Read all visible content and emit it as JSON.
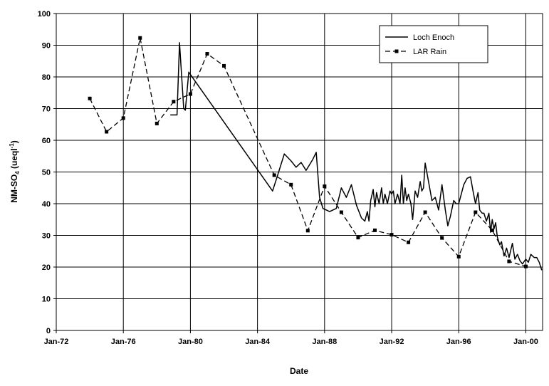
{
  "chart_data": {
    "type": "line",
    "title": "",
    "xlabel": "Date",
    "ylabel": {
      "main": "NM-SO",
      "sub": "4",
      "unit_pre": " (ueql",
      "sup": "-1",
      "unit_post": ")"
    },
    "xlim": [
      1972.0,
      2001.0
    ],
    "ylim": [
      0,
      100
    ],
    "x_ticks": [
      {
        "label": "Jan-72",
        "value": 1972.0
      },
      {
        "label": "Jan-76",
        "value": 1976.0
      },
      {
        "label": "Jan-80",
        "value": 1980.0
      },
      {
        "label": "Jan-84",
        "value": 1984.0
      },
      {
        "label": "Jan-88",
        "value": 1988.0
      },
      {
        "label": "Jan-92",
        "value": 1992.0
      },
      {
        "label": "Jan-96",
        "value": 1996.0
      },
      {
        "label": "Jan-00",
        "value": 2000.0
      }
    ],
    "y_ticks": [
      0,
      10,
      20,
      30,
      40,
      50,
      60,
      70,
      80,
      90,
      100
    ],
    "grid": true,
    "legend_position": "top-right",
    "series": [
      {
        "name": "Loch Enoch",
        "style": "solid",
        "color": "#000000",
        "points": [
          [
            1978.8,
            68
          ],
          [
            1979.2,
            68
          ],
          [
            1979.35,
            90.8
          ],
          [
            1979.6,
            70
          ],
          [
            1979.7,
            69.5
          ],
          [
            1979.9,
            81.5
          ],
          [
            1984.9,
            44
          ],
          [
            1985.2,
            49
          ],
          [
            1985.6,
            55.7
          ],
          [
            1986.0,
            53.5
          ],
          [
            1986.3,
            51.5
          ],
          [
            1986.6,
            53
          ],
          [
            1986.9,
            50.5
          ],
          [
            1987.3,
            54
          ],
          [
            1987.5,
            56.2
          ],
          [
            1987.7,
            42
          ],
          [
            1987.9,
            38.5
          ],
          [
            1988.3,
            37.5
          ],
          [
            1988.7,
            38.5
          ],
          [
            1989.0,
            45
          ],
          [
            1989.3,
            42
          ],
          [
            1989.6,
            46
          ],
          [
            1989.9,
            39.5
          ],
          [
            1990.2,
            35.5
          ],
          [
            1990.4,
            34.5
          ],
          [
            1990.55,
            37.5
          ],
          [
            1990.65,
            34.5
          ],
          [
            1990.75,
            41
          ],
          [
            1990.9,
            44.5
          ],
          [
            1991.0,
            39
          ],
          [
            1991.1,
            43.5
          ],
          [
            1991.25,
            40
          ],
          [
            1991.4,
            45
          ],
          [
            1991.5,
            40
          ],
          [
            1991.6,
            43
          ],
          [
            1991.75,
            40
          ],
          [
            1991.9,
            44
          ],
          [
            1992.0,
            43
          ],
          [
            1992.1,
            44
          ],
          [
            1992.2,
            40
          ],
          [
            1992.35,
            43
          ],
          [
            1992.5,
            40
          ],
          [
            1992.6,
            49
          ],
          [
            1992.7,
            40
          ],
          [
            1992.8,
            45
          ],
          [
            1992.9,
            41
          ],
          [
            1993.0,
            43
          ],
          [
            1993.15,
            40
          ],
          [
            1993.25,
            35
          ],
          [
            1993.4,
            44
          ],
          [
            1993.55,
            42
          ],
          [
            1993.7,
            47
          ],
          [
            1993.8,
            44
          ],
          [
            1993.9,
            45
          ],
          [
            1994.0,
            52.8
          ],
          [
            1994.2,
            47
          ],
          [
            1994.4,
            41
          ],
          [
            1994.6,
            42
          ],
          [
            1994.8,
            38
          ],
          [
            1995.0,
            46
          ],
          [
            1995.2,
            38
          ],
          [
            1995.35,
            33
          ],
          [
            1995.5,
            36
          ],
          [
            1995.7,
            41
          ],
          [
            1995.85,
            40
          ],
          [
            1996.0,
            40
          ],
          [
            1996.15,
            43
          ],
          [
            1996.3,
            46
          ],
          [
            1996.5,
            48
          ],
          [
            1996.7,
            48.5
          ],
          [
            1996.85,
            44
          ],
          [
            1997.0,
            40
          ],
          [
            1997.15,
            43.5
          ],
          [
            1997.25,
            38
          ],
          [
            1997.4,
            37
          ],
          [
            1997.5,
            37
          ],
          [
            1997.65,
            34.5
          ],
          [
            1997.8,
            37
          ],
          [
            1997.9,
            31
          ],
          [
            1998.0,
            35
          ],
          [
            1998.1,
            32
          ],
          [
            1998.2,
            34
          ],
          [
            1998.3,
            29.5
          ],
          [
            1998.45,
            27
          ],
          [
            1998.55,
            28
          ],
          [
            1998.7,
            23.5
          ],
          [
            1998.85,
            26
          ],
          [
            1999.0,
            23
          ],
          [
            1999.2,
            27.5
          ],
          [
            1999.35,
            22.5
          ],
          [
            1999.5,
            24
          ],
          [
            1999.65,
            22
          ],
          [
            1999.8,
            21
          ],
          [
            2000.0,
            22.5
          ],
          [
            2000.15,
            21.5
          ],
          [
            2000.3,
            24
          ],
          [
            2000.5,
            23
          ],
          [
            2000.65,
            23
          ],
          [
            2000.8,
            21.5
          ],
          [
            2000.95,
            19
          ]
        ]
      },
      {
        "name": "LAR Rain",
        "style": "dashed",
        "color": "#000000",
        "points": [
          [
            1974.0,
            73.2
          ],
          [
            1975.0,
            62.7
          ],
          [
            1976.0,
            67.0
          ],
          [
            1977.0,
            92.3
          ],
          [
            1978.0,
            65.3
          ],
          [
            1979.0,
            72.2
          ],
          [
            1980.0,
            74.6
          ],
          [
            1981.0,
            87.3
          ],
          [
            1982.0,
            83.5
          ],
          [
            1985.0,
            49.0
          ],
          [
            1986.0,
            46.0
          ],
          [
            1987.0,
            31.5
          ],
          [
            1988.0,
            45.5
          ],
          [
            1989.0,
            37.3
          ],
          [
            1990.0,
            29.3
          ],
          [
            1991.0,
            31.6
          ],
          [
            1992.0,
            30.2
          ],
          [
            1993.0,
            27.8
          ],
          [
            1994.0,
            37.3
          ],
          [
            1995.0,
            29.2
          ],
          [
            1996.0,
            23.3
          ],
          [
            1997.0,
            37.3
          ],
          [
            1998.0,
            31.6
          ],
          [
            1999.0,
            21.8
          ],
          [
            2000.0,
            20.2
          ]
        ]
      }
    ]
  }
}
